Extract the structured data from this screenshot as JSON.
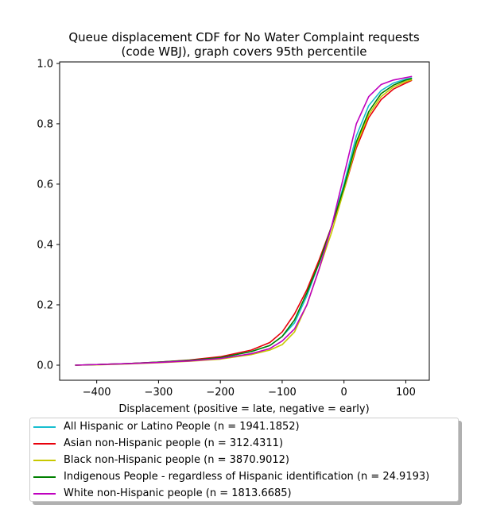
{
  "chart_data": {
    "type": "line",
    "title": "Queue displacement CDF for No Water Complaint  requests\n(code WBJ), graph covers 95th percentile",
    "xlabel": "Displacement (positive = late, negative = early)",
    "ylabel": "",
    "xlim": [
      -460,
      138
    ],
    "ylim": [
      -0.05,
      1.005
    ],
    "xticks": [
      -400,
      -300,
      -200,
      -100,
      0,
      100
    ],
    "xtick_labels": [
      "−400",
      "−300",
      "−200",
      "−100",
      "0",
      "100"
    ],
    "yticks": [
      0.0,
      0.2,
      0.4,
      0.6,
      0.8,
      1.0
    ],
    "ytick_labels": [
      "0.0",
      "0.2",
      "0.4",
      "0.6",
      "0.8",
      "1.0"
    ],
    "grid": false,
    "legend_position": "below",
    "series": [
      {
        "name": "All Hispanic or Latino People (n = 1941.1852)",
        "color": "#17becf",
        "points": [
          [
            -435,
            0.0
          ],
          [
            -400,
            0.002
          ],
          [
            -350,
            0.005
          ],
          [
            -300,
            0.01
          ],
          [
            -250,
            0.016
          ],
          [
            -200,
            0.025
          ],
          [
            -150,
            0.045
          ],
          [
            -120,
            0.065
          ],
          [
            -100,
            0.095
          ],
          [
            -80,
            0.14
          ],
          [
            -60,
            0.23
          ],
          [
            -40,
            0.34
          ],
          [
            -20,
            0.46
          ],
          [
            0,
            0.6
          ],
          [
            20,
            0.76
          ],
          [
            40,
            0.86
          ],
          [
            60,
            0.91
          ],
          [
            80,
            0.935
          ],
          [
            100,
            0.948
          ],
          [
            110,
            0.952
          ]
        ]
      },
      {
        "name": "Asian non-Hispanic people (n = 312.4311)",
        "color": "#e8000b",
        "points": [
          [
            -435,
            0.0
          ],
          [
            -400,
            0.002
          ],
          [
            -350,
            0.005
          ],
          [
            -300,
            0.01
          ],
          [
            -250,
            0.017
          ],
          [
            -200,
            0.028
          ],
          [
            -150,
            0.05
          ],
          [
            -120,
            0.075
          ],
          [
            -100,
            0.11
          ],
          [
            -80,
            0.17
          ],
          [
            -60,
            0.25
          ],
          [
            -40,
            0.35
          ],
          [
            -20,
            0.46
          ],
          [
            0,
            0.58
          ],
          [
            20,
            0.72
          ],
          [
            40,
            0.82
          ],
          [
            60,
            0.88
          ],
          [
            80,
            0.915
          ],
          [
            100,
            0.935
          ],
          [
            110,
            0.944
          ]
        ]
      },
      {
        "name": "Black non-Hispanic people (n = 3870.9012)",
        "color": "#c8c800",
        "points": [
          [
            -435,
            0.0
          ],
          [
            -400,
            0.001
          ],
          [
            -350,
            0.004
          ],
          [
            -300,
            0.008
          ],
          [
            -250,
            0.013
          ],
          [
            -200,
            0.02
          ],
          [
            -150,
            0.035
          ],
          [
            -120,
            0.05
          ],
          [
            -100,
            0.068
          ],
          [
            -80,
            0.11
          ],
          [
            -60,
            0.2
          ],
          [
            -40,
            0.32
          ],
          [
            -20,
            0.44
          ],
          [
            0,
            0.58
          ],
          [
            20,
            0.73
          ],
          [
            40,
            0.83
          ],
          [
            60,
            0.89
          ],
          [
            80,
            0.922
          ],
          [
            100,
            0.94
          ],
          [
            110,
            0.946
          ]
        ]
      },
      {
        "name": "Indigenous People - regardless of Hispanic identification (n = 24.9193)",
        "color": "#008000",
        "points": [
          [
            -435,
            0.0
          ],
          [
            -400,
            0.002
          ],
          [
            -350,
            0.005
          ],
          [
            -300,
            0.01
          ],
          [
            -250,
            0.016
          ],
          [
            -200,
            0.025
          ],
          [
            -150,
            0.045
          ],
          [
            -120,
            0.065
          ],
          [
            -100,
            0.095
          ],
          [
            -80,
            0.15
          ],
          [
            -60,
            0.24
          ],
          [
            -40,
            0.34
          ],
          [
            -20,
            0.46
          ],
          [
            0,
            0.59
          ],
          [
            20,
            0.74
          ],
          [
            40,
            0.84
          ],
          [
            60,
            0.9
          ],
          [
            80,
            0.928
          ],
          [
            100,
            0.945
          ],
          [
            110,
            0.95
          ]
        ]
      },
      {
        "name": "White non-Hispanic people (n = 1813.6685)",
        "color": "#bf00bf",
        "points": [
          [
            -435,
            0.0
          ],
          [
            -400,
            0.002
          ],
          [
            -350,
            0.005
          ],
          [
            -300,
            0.009
          ],
          [
            -250,
            0.014
          ],
          [
            -200,
            0.022
          ],
          [
            -150,
            0.038
          ],
          [
            -120,
            0.055
          ],
          [
            -100,
            0.08
          ],
          [
            -80,
            0.12
          ],
          [
            -60,
            0.2
          ],
          [
            -40,
            0.32
          ],
          [
            -20,
            0.46
          ],
          [
            0,
            0.63
          ],
          [
            20,
            0.8
          ],
          [
            40,
            0.89
          ],
          [
            60,
            0.93
          ],
          [
            80,
            0.945
          ],
          [
            100,
            0.953
          ],
          [
            110,
            0.957
          ]
        ]
      }
    ]
  }
}
